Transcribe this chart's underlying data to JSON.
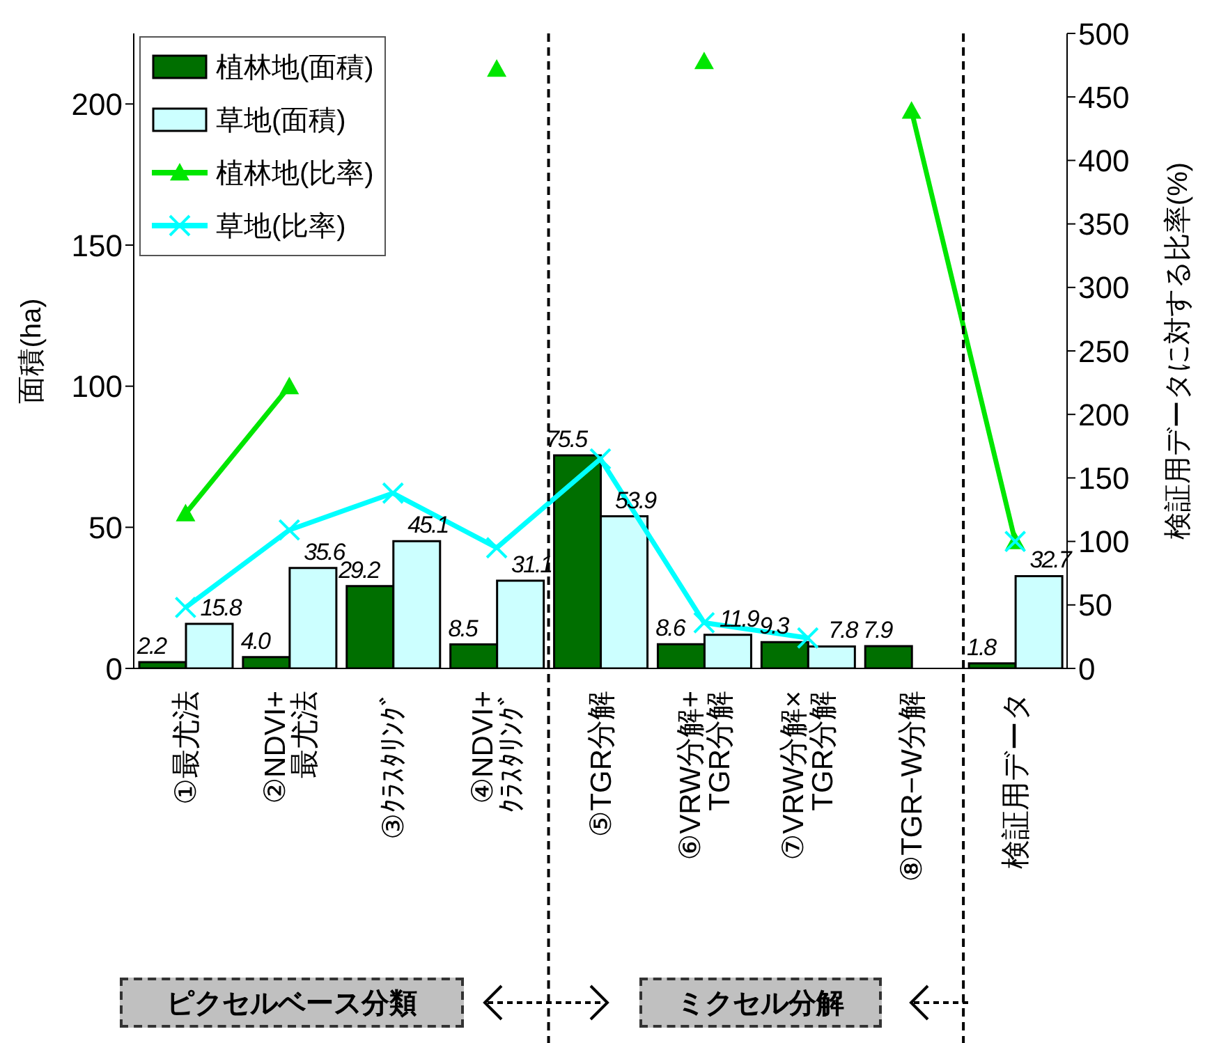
{
  "chart_data": {
    "type": "bar",
    "categories": [
      "①最尤法",
      "②NDVI+\n最尤法",
      "③ｸﾗｽﾀﾘﾝｸﾞ",
      "④NDVI+\nｸﾗｽﾀﾘﾝｸﾞ",
      "⑤TGR分解",
      "⑥VRW分解+\nTGR分解",
      "⑦VRW分解×\nTGR分解",
      "⑧TGR−W分解",
      "検証用データ"
    ],
    "series": [
      {
        "name": "植林地(面積)",
        "color": "#006f00",
        "values": [
          2.2,
          4.0,
          29.2,
          8.5,
          75.5,
          8.6,
          9.3,
          7.9,
          1.8
        ],
        "value_labels": [
          "2.2",
          "4.0",
          "29.2",
          "8.5",
          "75.5",
          "8.6",
          "9.3",
          "7.9",
          "1.8"
        ]
      },
      {
        "name": "草地(面積)",
        "color": "#ccffff",
        "values": [
          15.8,
          35.6,
          45.1,
          31.1,
          53.9,
          11.9,
          7.8,
          null,
          32.7
        ],
        "value_labels": [
          "15.8",
          "35.6",
          "45.1",
          "31.1",
          "53.9",
          "11.9",
          "7.8",
          null,
          "32.7"
        ]
      },
      {
        "name": "植林地(比率)",
        "type": "line",
        "axis": "y2",
        "marker": "triangle",
        "color": "#00e600",
        "values": [
          122,
          222,
          null,
          472,
          null,
          478,
          null,
          439,
          100
        ]
      },
      {
        "name": "草地(比率)",
        "type": "line",
        "axis": "y2",
        "marker": "cross",
        "color": "#00ffff",
        "values": [
          48,
          109,
          138,
          95,
          165,
          36,
          24,
          null,
          100
        ]
      }
    ],
    "ylabel": "面積(ha)",
    "y2label": "検証用データに対する比率(%)",
    "ylim": [
      0,
      225
    ],
    "yticks": [
      0,
      50,
      100,
      150,
      200
    ],
    "y2lim": [
      0,
      500
    ],
    "y2ticks": [
      0,
      50,
      100,
      150,
      200,
      250,
      300,
      350,
      400,
      450,
      500
    ],
    "annotations": [
      "ピクセルベース分類",
      "ミクセル分解"
    ],
    "legend": "top left",
    "grid": false
  }
}
